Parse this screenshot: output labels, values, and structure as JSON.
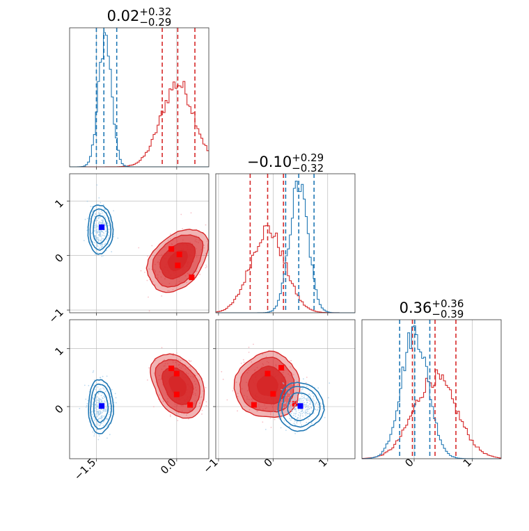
{
  "chart_data": {
    "type": "corner",
    "colors": {
      "red": "#d62728",
      "blue": "#1f77b4",
      "grid": "#b0b0b0"
    },
    "titles": [
      {
        "value": "0.02",
        "plus": "+0.32",
        "minus": "−0.29"
      },
      {
        "value": "−0.10",
        "plus": "+0.29",
        "minus": "−0.32"
      },
      {
        "value": "0.36",
        "plus": "+0.36",
        "minus": "−0.39"
      }
    ],
    "params": [
      {
        "range": [
          -2.0,
          0.6
        ],
        "ticks": [
          -1.5,
          0.0
        ],
        "tick_labels": [
          "−1.5",
          "0.0"
        ]
      },
      {
        "range": [
          -1.05,
          1.5
        ],
        "ticks": [
          -1,
          0,
          1
        ],
        "tick_labels": [
          "−1",
          "0",
          "1"
        ]
      },
      {
        "range": [
          -0.9,
          1.5
        ],
        "ticks": [
          0,
          1
        ],
        "tick_labels": [
          "0",
          "1"
        ]
      }
    ],
    "diag_quantiles": {
      "red": [
        [
          -0.27,
          0.02,
          0.34
        ],
        [
          -0.42,
          -0.1,
          0.19
        ],
        [
          -0.03,
          0.36,
          0.72
        ]
      ],
      "blue": [
        [
          -1.5,
          -1.36,
          -1.12
        ],
        [
          0.23,
          0.47,
          0.75
        ],
        [
          -0.25,
          0.01,
          0.27
        ]
      ]
    },
    "diag_hist": {
      "red": [
        {
          "mean": 0.02,
          "sd": 0.31,
          "amp": 0.6
        },
        {
          "mean": -0.1,
          "sd": 0.31,
          "amp": 0.6
        },
        {
          "mean": 0.36,
          "sd": 0.37,
          "amp": 0.58
        }
      ],
      "blue": [
        {
          "mean": -1.34,
          "sd": 0.12,
          "amp": 0.94
        },
        {
          "mean": 0.47,
          "sd": 0.17,
          "amp": 0.92
        },
        {
          "mean": 0.01,
          "sd": 0.23,
          "amp": 0.92
        }
      ]
    },
    "pair_2d": {
      "p1_p0": {
        "red": {
          "center": [
            0.02,
            -0.09
          ],
          "sd": [
            0.27,
            0.27
          ],
          "angle": -48,
          "elong": 1.5,
          "fill": true,
          "markers": [
            [
              -0.1,
              0.12
            ],
            [
              0.02,
              -0.18
            ],
            [
              0.28,
              -0.4
            ],
            [
              0.05,
              0.02
            ]
          ]
        },
        "blue": {
          "center": [
            -1.43,
            0.48
          ],
          "sd": [
            0.14,
            0.27
          ],
          "angle": 0,
          "elong": 1.0,
          "fill": false,
          "markers": [
            [
              -1.4,
              0.52
            ]
          ]
        }
      },
      "p2_p0": {
        "red": {
          "center": [
            0.02,
            0.36
          ],
          "sd": [
            0.26,
            0.36
          ],
          "angle": -30,
          "elong": 1.0,
          "fill": true,
          "markers": [
            [
              -0.1,
              0.66
            ],
            [
              0.0,
              0.57
            ],
            [
              0.0,
              0.21
            ],
            [
              0.25,
              0.03
            ]
          ]
        },
        "blue": {
          "center": [
            -1.42,
            0.0
          ],
          "sd": [
            0.14,
            0.28
          ],
          "angle": 0,
          "elong": 1.0,
          "fill": false,
          "markers": [
            [
              -1.4,
              0.01
            ]
          ]
        }
      },
      "p2_p1": {
        "red": {
          "center": [
            -0.1,
            0.36
          ],
          "sd": [
            0.3,
            0.34
          ],
          "angle": 40,
          "elong": 1.2,
          "fill": true,
          "markers": [
            [
              -0.35,
              0.03
            ],
            [
              -0.1,
              0.57
            ],
            [
              0.15,
              0.67
            ],
            [
              0.0,
              0.22
            ],
            [
              0.4,
              0.05
            ]
          ]
        },
        "blue": {
          "center": [
            0.5,
            0.0
          ],
          "sd": [
            0.25,
            0.25
          ],
          "angle": 0,
          "elong": 1.0,
          "fill": false,
          "markers": [
            [
              0.5,
              0.01
            ]
          ]
        }
      }
    }
  }
}
